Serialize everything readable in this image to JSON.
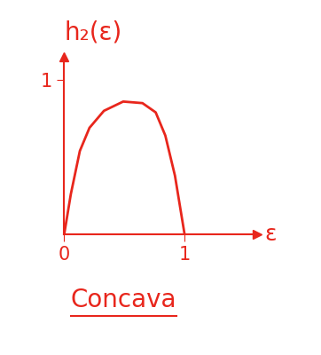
{
  "chart_data": {
    "type": "line",
    "title": "h₂(ε)",
    "x_label": "ε",
    "annotations": [
      "Concava"
    ],
    "x": [
      0,
      0.055,
      0.13,
      0.21,
      0.33,
      0.49,
      0.65,
      0.76,
      0.84,
      0.92,
      1.0
    ],
    "values": [
      0,
      0.26,
      0.54,
      0.69,
      0.8,
      0.86,
      0.85,
      0.79,
      0.64,
      0.38,
      0
    ],
    "color": "#e8261c",
    "xlim": [
      0,
      1.6
    ],
    "ylim": [
      0,
      1.15
    ],
    "xticks": [
      0,
      1
    ],
    "yticks": [
      1
    ],
    "grid": false
  }
}
